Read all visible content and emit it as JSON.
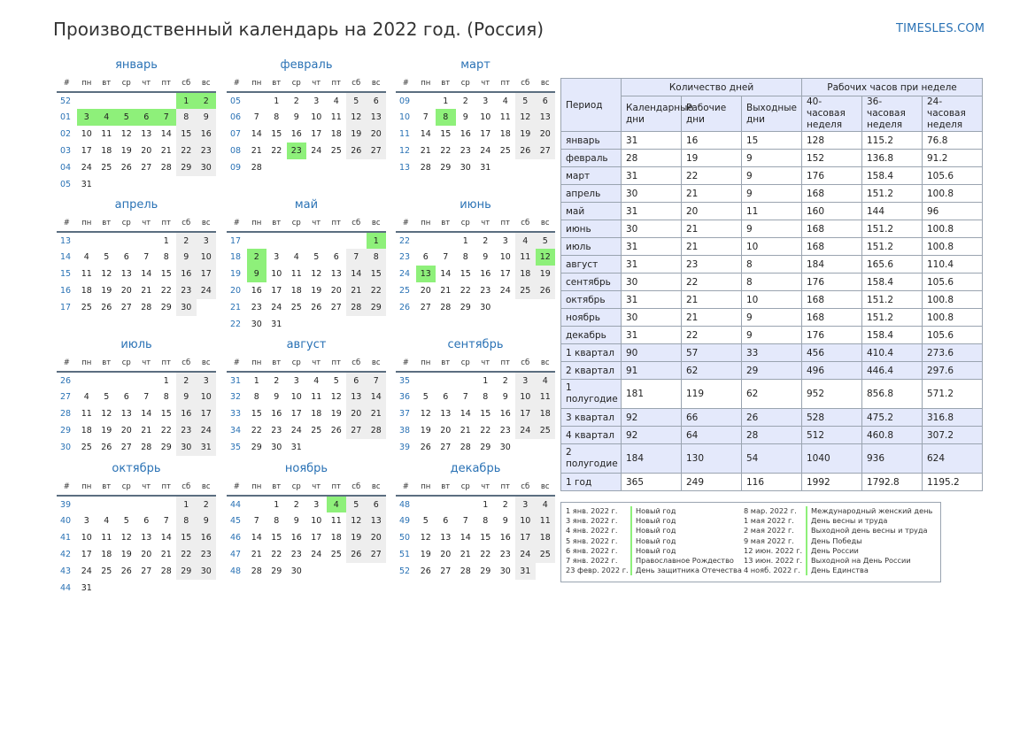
{
  "header": {
    "title": "Производственный календарь на 2022 год. (Россия)",
    "site": "TIMESLES.COM"
  },
  "calendar": {
    "weekday_headers": [
      "#",
      "пн",
      "вт",
      "ср",
      "чт",
      "пт",
      "сб",
      "вс"
    ],
    "months": [
      {
        "name": "январь",
        "weeks": [
          [
            "52",
            "",
            "",
            "",
            "",
            "",
            "1",
            "2"
          ],
          [
            "01",
            "3",
            "4",
            "5",
            "6",
            "7",
            "8",
            "9"
          ],
          [
            "02",
            "10",
            "11",
            "12",
            "13",
            "14",
            "15",
            "16"
          ],
          [
            "03",
            "17",
            "18",
            "19",
            "20",
            "21",
            "22",
            "23"
          ],
          [
            "04",
            "24",
            "25",
            "26",
            "27",
            "28",
            "29",
            "30"
          ],
          [
            "05",
            "31",
            "",
            "",
            "",
            "",
            "",
            ""
          ]
        ],
        "holidays": [
          1,
          2,
          3,
          4,
          5,
          6,
          7
        ]
      },
      {
        "name": "февраль",
        "weeks": [
          [
            "05",
            "",
            "1",
            "2",
            "3",
            "4",
            "5",
            "6"
          ],
          [
            "06",
            "7",
            "8",
            "9",
            "10",
            "11",
            "12",
            "13"
          ],
          [
            "07",
            "14",
            "15",
            "16",
            "17",
            "18",
            "19",
            "20"
          ],
          [
            "08",
            "21",
            "22",
            "23",
            "24",
            "25",
            "26",
            "27"
          ],
          [
            "09",
            "28",
            "",
            "",
            "",
            "",
            "",
            ""
          ]
        ],
        "holidays": [
          23
        ]
      },
      {
        "name": "март",
        "weeks": [
          [
            "09",
            "",
            "1",
            "2",
            "3",
            "4",
            "5",
            "6"
          ],
          [
            "10",
            "7",
            "8",
            "9",
            "10",
            "11",
            "12",
            "13"
          ],
          [
            "11",
            "14",
            "15",
            "16",
            "17",
            "18",
            "19",
            "20"
          ],
          [
            "12",
            "21",
            "22",
            "23",
            "24",
            "25",
            "26",
            "27"
          ],
          [
            "13",
            "28",
            "29",
            "30",
            "31",
            "",
            "",
            ""
          ]
        ],
        "holidays": [
          8
        ]
      },
      {
        "name": "апрель",
        "weeks": [
          [
            "13",
            "",
            "",
            "",
            "",
            "1",
            "2",
            "3"
          ],
          [
            "14",
            "4",
            "5",
            "6",
            "7",
            "8",
            "9",
            "10"
          ],
          [
            "15",
            "11",
            "12",
            "13",
            "14",
            "15",
            "16",
            "17"
          ],
          [
            "16",
            "18",
            "19",
            "20",
            "21",
            "22",
            "23",
            "24"
          ],
          [
            "17",
            "25",
            "26",
            "27",
            "28",
            "29",
            "30",
            ""
          ]
        ],
        "holidays": []
      },
      {
        "name": "май",
        "weeks": [
          [
            "17",
            "",
            "",
            "",
            "",
            "",
            "",
            "1"
          ],
          [
            "18",
            "2",
            "3",
            "4",
            "5",
            "6",
            "7",
            "8"
          ],
          [
            "19",
            "9",
            "10",
            "11",
            "12",
            "13",
            "14",
            "15"
          ],
          [
            "20",
            "16",
            "17",
            "18",
            "19",
            "20",
            "21",
            "22"
          ],
          [
            "21",
            "23",
            "24",
            "25",
            "26",
            "27",
            "28",
            "29"
          ],
          [
            "22",
            "30",
            "31",
            "",
            "",
            "",
            "",
            ""
          ]
        ],
        "holidays": [
          1,
          2,
          9
        ]
      },
      {
        "name": "июнь",
        "weeks": [
          [
            "22",
            "",
            "",
            "1",
            "2",
            "3",
            "4",
            "5"
          ],
          [
            "23",
            "6",
            "7",
            "8",
            "9",
            "10",
            "11",
            "12"
          ],
          [
            "24",
            "13",
            "14",
            "15",
            "16",
            "17",
            "18",
            "19"
          ],
          [
            "25",
            "20",
            "21",
            "22",
            "23",
            "24",
            "25",
            "26"
          ],
          [
            "26",
            "27",
            "28",
            "29",
            "30",
            "",
            "",
            ""
          ]
        ],
        "holidays": [
          12,
          13
        ]
      },
      {
        "name": "июль",
        "weeks": [
          [
            "26",
            "",
            "",
            "",
            "",
            "1",
            "2",
            "3"
          ],
          [
            "27",
            "4",
            "5",
            "6",
            "7",
            "8",
            "9",
            "10"
          ],
          [
            "28",
            "11",
            "12",
            "13",
            "14",
            "15",
            "16",
            "17"
          ],
          [
            "29",
            "18",
            "19",
            "20",
            "21",
            "22",
            "23",
            "24"
          ],
          [
            "30",
            "25",
            "26",
            "27",
            "28",
            "29",
            "30",
            "31"
          ]
        ],
        "holidays": []
      },
      {
        "name": "август",
        "weeks": [
          [
            "31",
            "1",
            "2",
            "3",
            "4",
            "5",
            "6",
            "7"
          ],
          [
            "32",
            "8",
            "9",
            "10",
            "11",
            "12",
            "13",
            "14"
          ],
          [
            "33",
            "15",
            "16",
            "17",
            "18",
            "19",
            "20",
            "21"
          ],
          [
            "34",
            "22",
            "23",
            "24",
            "25",
            "26",
            "27",
            "28"
          ],
          [
            "35",
            "29",
            "30",
            "31",
            "",
            "",
            "",
            ""
          ]
        ],
        "holidays": []
      },
      {
        "name": "сентябрь",
        "weeks": [
          [
            "35",
            "",
            "",
            "",
            "1",
            "2",
            "3",
            "4"
          ],
          [
            "36",
            "5",
            "6",
            "7",
            "8",
            "9",
            "10",
            "11"
          ],
          [
            "37",
            "12",
            "13",
            "14",
            "15",
            "16",
            "17",
            "18"
          ],
          [
            "38",
            "19",
            "20",
            "21",
            "22",
            "23",
            "24",
            "25"
          ],
          [
            "39",
            "26",
            "27",
            "28",
            "29",
            "30",
            "",
            ""
          ]
        ],
        "holidays": []
      },
      {
        "name": "октябрь",
        "weeks": [
          [
            "39",
            "",
            "",
            "",
            "",
            "",
            "1",
            "2"
          ],
          [
            "40",
            "3",
            "4",
            "5",
            "6",
            "7",
            "8",
            "9"
          ],
          [
            "41",
            "10",
            "11",
            "12",
            "13",
            "14",
            "15",
            "16"
          ],
          [
            "42",
            "17",
            "18",
            "19",
            "20",
            "21",
            "22",
            "23"
          ],
          [
            "43",
            "24",
            "25",
            "26",
            "27",
            "28",
            "29",
            "30"
          ],
          [
            "44",
            "31",
            "",
            "",
            "",
            "",
            "",
            ""
          ]
        ],
        "holidays": []
      },
      {
        "name": "ноябрь",
        "weeks": [
          [
            "44",
            "",
            "1",
            "2",
            "3",
            "4",
            "5",
            "6"
          ],
          [
            "45",
            "7",
            "8",
            "9",
            "10",
            "11",
            "12",
            "13"
          ],
          [
            "46",
            "14",
            "15",
            "16",
            "17",
            "18",
            "19",
            "20"
          ],
          [
            "47",
            "21",
            "22",
            "23",
            "24",
            "25",
            "26",
            "27"
          ],
          [
            "48",
            "28",
            "29",
            "30",
            "",
            "",
            "",
            ""
          ]
        ],
        "holidays": [
          4
        ]
      },
      {
        "name": "декабрь",
        "weeks": [
          [
            "48",
            "",
            "",
            "",
            "1",
            "2",
            "3",
            "4"
          ],
          [
            "49",
            "5",
            "6",
            "7",
            "8",
            "9",
            "10",
            "11"
          ],
          [
            "50",
            "12",
            "13",
            "14",
            "15",
            "16",
            "17",
            "18"
          ],
          [
            "51",
            "19",
            "20",
            "21",
            "22",
            "23",
            "24",
            "25"
          ],
          [
            "52",
            "26",
            "27",
            "28",
            "29",
            "30",
            "31",
            ""
          ]
        ],
        "holidays": []
      }
    ]
  },
  "stats": {
    "period_header": "Период",
    "group_days": "Количество дней",
    "group_hours": "Рабочих часов при неделе",
    "columns": [
      "Календарные дни",
      "Рабочие дни",
      "Выходные дни",
      "40-часовая неделя",
      "36-часовая неделя",
      "24-часовая неделя"
    ],
    "rows": [
      {
        "period": "январь",
        "values": [
          "31",
          "16",
          "15",
          "128",
          "115.2",
          "76.8"
        ]
      },
      {
        "period": "февраль",
        "values": [
          "28",
          "19",
          "9",
          "152",
          "136.8",
          "91.2"
        ]
      },
      {
        "period": "март",
        "values": [
          "31",
          "22",
          "9",
          "176",
          "158.4",
          "105.6"
        ]
      },
      {
        "period": "апрель",
        "values": [
          "30",
          "21",
          "9",
          "168",
          "151.2",
          "100.8"
        ]
      },
      {
        "period": "май",
        "values": [
          "31",
          "20",
          "11",
          "160",
          "144",
          "96"
        ]
      },
      {
        "period": "июнь",
        "values": [
          "30",
          "21",
          "9",
          "168",
          "151.2",
          "100.8"
        ]
      },
      {
        "period": "июль",
        "values": [
          "31",
          "21",
          "10",
          "168",
          "151.2",
          "100.8"
        ]
      },
      {
        "period": "август",
        "values": [
          "31",
          "23",
          "8",
          "184",
          "165.6",
          "110.4"
        ]
      },
      {
        "period": "сентябрь",
        "values": [
          "30",
          "22",
          "8",
          "176",
          "158.4",
          "105.6"
        ]
      },
      {
        "period": "октябрь",
        "values": [
          "31",
          "21",
          "10",
          "168",
          "151.2",
          "100.8"
        ]
      },
      {
        "period": "ноябрь",
        "values": [
          "30",
          "21",
          "9",
          "168",
          "151.2",
          "100.8"
        ]
      },
      {
        "period": "декабрь",
        "values": [
          "31",
          "22",
          "9",
          "176",
          "158.4",
          "105.6"
        ]
      },
      {
        "period": "1 квартал",
        "values": [
          "90",
          "57",
          "33",
          "456",
          "410.4",
          "273.6"
        ]
      },
      {
        "period": "2 квартал",
        "values": [
          "91",
          "62",
          "29",
          "496",
          "446.4",
          "297.6"
        ]
      },
      {
        "period": "1 полугодие",
        "values": [
          "181",
          "119",
          "62",
          "952",
          "856.8",
          "571.2"
        ]
      },
      {
        "period": "3 квартал",
        "values": [
          "92",
          "66",
          "26",
          "528",
          "475.2",
          "316.8"
        ]
      },
      {
        "period": "4 квартал",
        "values": [
          "92",
          "64",
          "28",
          "512",
          "460.8",
          "307.2"
        ]
      },
      {
        "period": "2 полугодие",
        "values": [
          "184",
          "130",
          "54",
          "1040",
          "936",
          "624"
        ]
      },
      {
        "period": "1 год",
        "values": [
          "365",
          "249",
          "116",
          "1992",
          "1792.8",
          "1195.2"
        ]
      }
    ]
  },
  "holidays": {
    "left": [
      {
        "date": "1 янв. 2022 г.",
        "name": "Новый год"
      },
      {
        "date": "3 янв. 2022 г.",
        "name": "Новый год"
      },
      {
        "date": "4 янв. 2022 г.",
        "name": "Новый год"
      },
      {
        "date": "5 янв. 2022 г.",
        "name": "Новый год"
      },
      {
        "date": "6 янв. 2022 г.",
        "name": "Новый год"
      },
      {
        "date": "7 янв. 2022 г.",
        "name": "Православное Рождество"
      },
      {
        "date": "23 февр. 2022 г.",
        "name": "День защитника Отечества"
      }
    ],
    "right": [
      {
        "date": "8 мар. 2022 г.",
        "name": "Международный женский день"
      },
      {
        "date": "1 мая 2022 г.",
        "name": "День весны и труда"
      },
      {
        "date": "2 мая 2022 г.",
        "name": "Выходной день весны и труда"
      },
      {
        "date": "9 мая 2022 г.",
        "name": "День Победы"
      },
      {
        "date": "12 июн. 2022 г.",
        "name": "День России"
      },
      {
        "date": "13 июн. 2022 г.",
        "name": "Выходной на День России"
      },
      {
        "date": "4 нояб. 2022 г.",
        "name": "День Единства"
      }
    ]
  },
  "colors": {
    "accent": "#2a72b5",
    "holiday": "#8ef07a",
    "weekend": "#eeeeee",
    "table_header": "#e4e9fb"
  }
}
